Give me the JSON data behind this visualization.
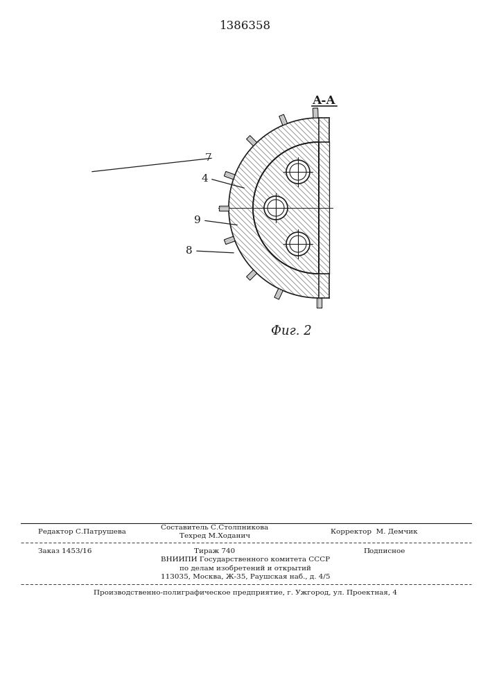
{
  "patent_number": "1386358",
  "section_label": "А-А",
  "fig_label": "Фиг. 2",
  "footer_line1_left": "Редактор С.Патрушева",
  "footer_line1_center_top": "Составитель С.Столпникова",
  "footer_techred": "Техред М.Ходанич",
  "footer_line1_right": "Корректор  М. Демчик",
  "footer_line2_left": "Заказ 1453/16",
  "footer_line2_center": "Тираж 740",
  "footer_line2_right": "Подписное",
  "footer_vnipi1": "ВНИИПИ Государственного комитета СССР",
  "footer_vnipi2": "по делам изобретений и открытий",
  "footer_vnipi3": "113035, Москва, Ж-35, Раушская наб., д. 4/5",
  "footer_last": "Производственно-полиграфическое предприятие, г. Ужгород, ул. Проектная, 4",
  "bg_color": "#ffffff",
  "line_color": "#1a1a1a"
}
